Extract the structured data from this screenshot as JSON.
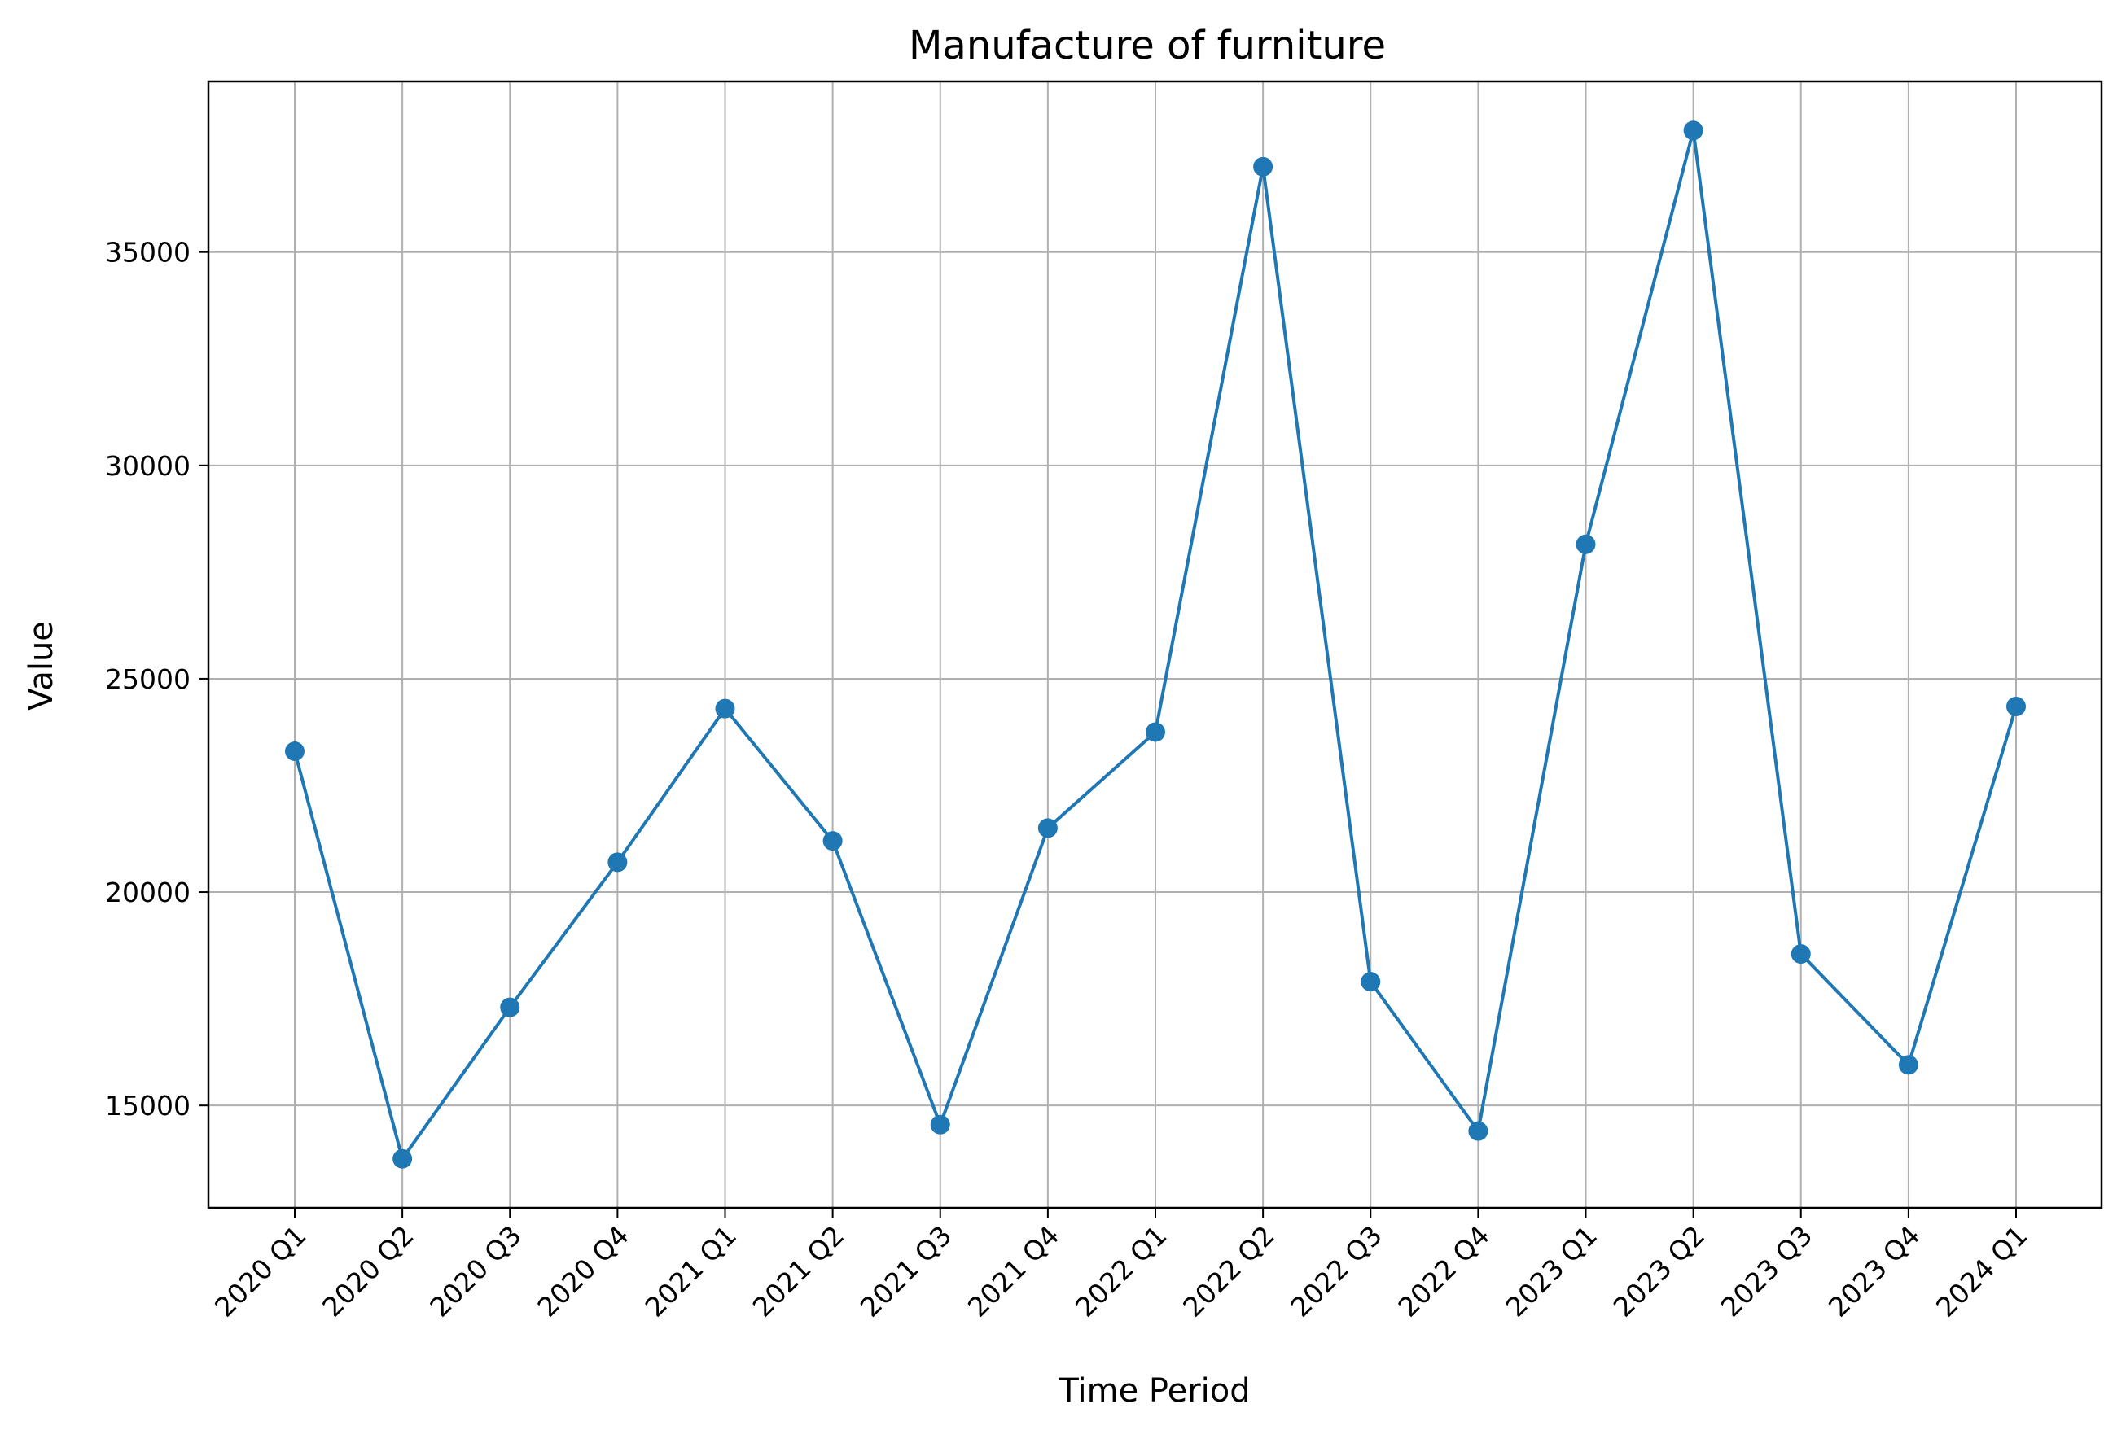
{
  "chart_data": {
    "type": "line",
    "title": "Manufacture of furniture",
    "xlabel": "Time Period",
    "ylabel": "Value",
    "categories": [
      "2020 Q1",
      "2020 Q2",
      "2020 Q3",
      "2020 Q4",
      "2021 Q1",
      "2021 Q2",
      "2021 Q3",
      "2021 Q4",
      "2022 Q1",
      "2022 Q2",
      "2022 Q3",
      "2022 Q4",
      "2023 Q1",
      "2023 Q2",
      "2023 Q3",
      "2023 Q4",
      "2024 Q1"
    ],
    "series": [
      {
        "values": [
          23300,
          13750,
          17300,
          20700,
          24300,
          21200,
          14550,
          21500,
          23750,
          37000,
          17900,
          14400,
          28150,
          37850,
          18550,
          15950,
          24350
        ]
      }
    ],
    "ylim": [
      12600,
      39000
    ],
    "yticks": [
      "15000",
      "20000",
      "25000",
      "30000",
      "35000"
    ],
    "grid": true,
    "colors": {
      "line": "#1f77b4",
      "grid": "#b0b0b0",
      "axis": "#000000"
    }
  }
}
